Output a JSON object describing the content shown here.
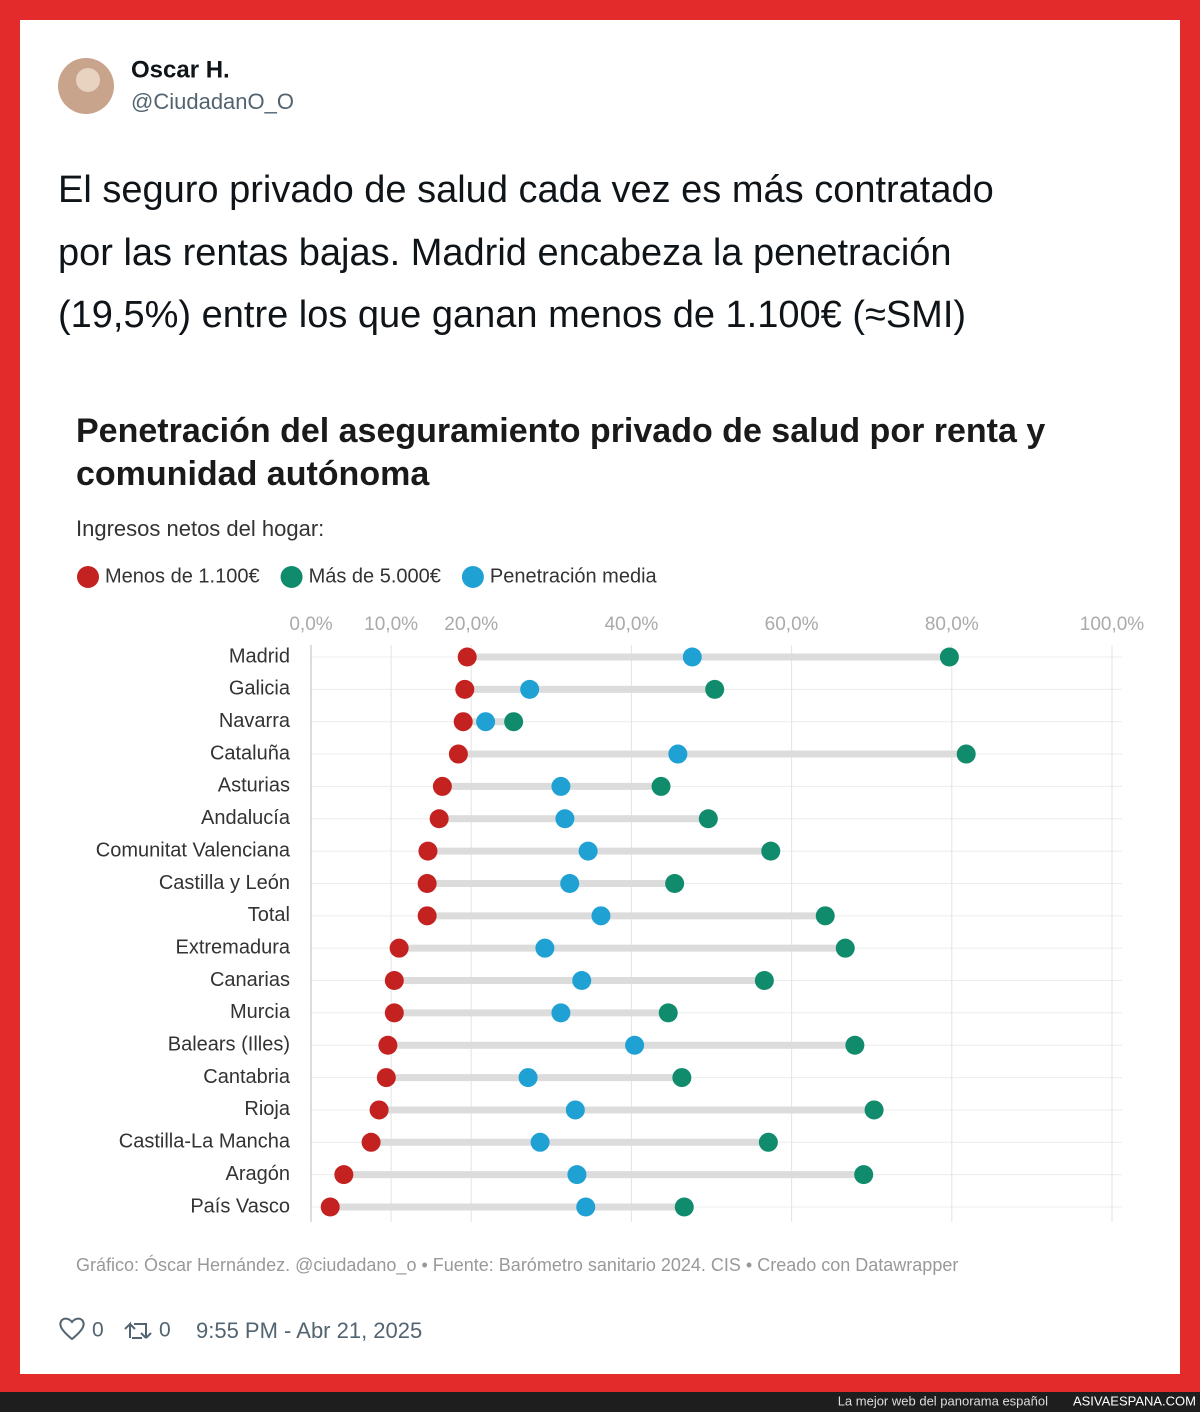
{
  "tweet": {
    "name": "Oscar H.",
    "handle": "@CiudadanO_O",
    "text_lines": [
      "El seguro privado de salud cada vez es más contratado",
      "por las rentas bajas. Madrid encabeza la penetración",
      "(19,5%) entre los que ganan menos de 1.100€ (≈SMI)"
    ],
    "likes": "0",
    "retweets": "0",
    "timestamp": "9:55 PM - Abr 21, 2025"
  },
  "banner": {
    "text": "La mejor web del panorama español",
    "site": "ASIVAESPANA.COM"
  },
  "chart_data": {
    "type": "dot",
    "title_lines": [
      "Penetración del aseguramiento privado de salud por renta y",
      "comunidad autónoma"
    ],
    "subtitle": "Ingresos netos del hogar:",
    "source": "Gráfico: Óscar Hernández. @ciudadano_o • Fuente: Barómetro sanitario 2024. CIS • Creado con Datawrapper",
    "categories": [
      "Madrid",
      "Galicia",
      "Navarra",
      "Cataluña",
      "Asturias",
      "Andalucía",
      "Comunitat Valenciana",
      "Castilla y León",
      "Total",
      "Extremadura",
      "Canarias",
      "Murcia",
      "Balears (Illes)",
      "Cantabria",
      "Rioja",
      "Castilla-La Mancha",
      "Aragón",
      "País Vasco"
    ],
    "series": [
      {
        "name": "Menos de 1.100€",
        "color": "#c42121",
        "values": [
          19.5,
          19.2,
          19.0,
          18.4,
          16.4,
          16.0,
          14.6,
          14.5,
          14.5,
          11.0,
          10.4,
          10.4,
          9.6,
          9.4,
          8.5,
          7.5,
          4.1,
          2.4
        ]
      },
      {
        "name": "Más de 5.000€",
        "color": "#108c6c",
        "values": [
          79.7,
          50.4,
          25.3,
          81.8,
          43.7,
          49.6,
          57.4,
          45.4,
          64.2,
          66.7,
          56.6,
          44.6,
          67.9,
          46.3,
          70.3,
          57.1,
          69.0,
          46.6
        ]
      },
      {
        "name": "Penetración media",
        "color": "#1fa1d4",
        "values": [
          47.6,
          27.3,
          21.8,
          45.8,
          31.2,
          31.7,
          34.6,
          32.3,
          36.2,
          29.2,
          33.8,
          31.2,
          40.4,
          27.1,
          33.0,
          28.6,
          33.2,
          34.3
        ]
      }
    ],
    "xlim": [
      0,
      100
    ],
    "xticks": [
      {
        "value": 0,
        "label": "0,0%"
      },
      {
        "value": 10,
        "label": "10,0%"
      },
      {
        "value": 20,
        "label": "20,0%"
      },
      {
        "value": 40,
        "label": "40,0%"
      },
      {
        "value": 60,
        "label": "60,0%"
      },
      {
        "value": 80,
        "label": "80,0%"
      },
      {
        "value": 100,
        "label": "100,0%"
      }
    ],
    "grid": true
  }
}
